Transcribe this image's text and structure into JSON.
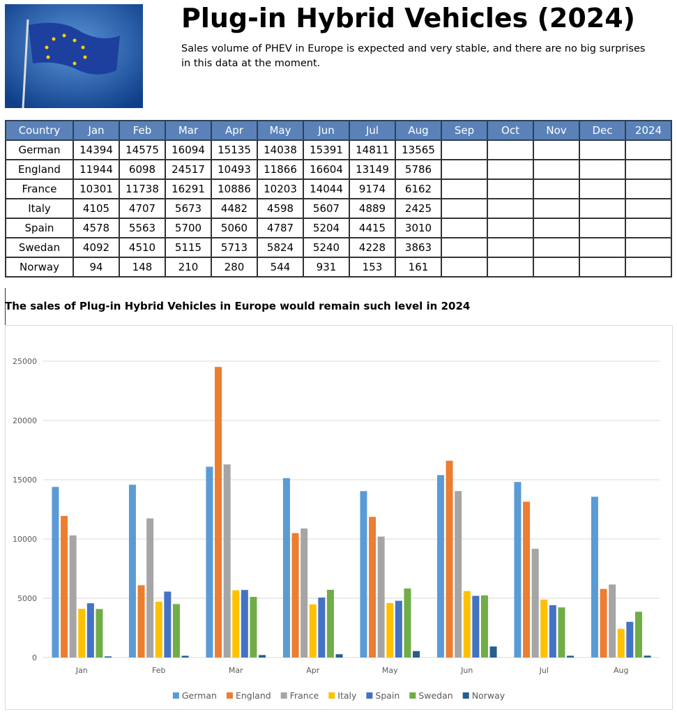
{
  "header": {
    "title": "Plug-in Hybrid Vehicles (2024)",
    "subtitle": "Sales volume of PHEV in Europe is expected and very stable, and there are no big surprises in this data at the moment."
  },
  "table": {
    "columns": [
      "Country",
      "Jan",
      "Feb",
      "Mar",
      "Apr",
      "May",
      "Jun",
      "Jul",
      "Aug",
      "Sep",
      "Oct",
      "Nov",
      "Dec",
      "2024"
    ]
  },
  "chart_heading": "The sales of Plug-in Hybrid Vehicles in Europe would remain such level in 2024",
  "chart_data": {
    "type": "bar",
    "categories": [
      "Jan",
      "Feb",
      "Mar",
      "Apr",
      "May",
      "Jun",
      "Jul",
      "Aug"
    ],
    "series": [
      {
        "name": "German",
        "color": "#5b9bd5",
        "values": [
          14394,
          14575,
          16094,
          15135,
          14038,
          15391,
          14811,
          13565
        ]
      },
      {
        "name": "England",
        "color": "#ed7d31",
        "values": [
          11944,
          6098,
          24517,
          10493,
          11866,
          16604,
          13149,
          5786
        ]
      },
      {
        "name": "France",
        "color": "#a5a5a5",
        "values": [
          10301,
          11738,
          16291,
          10886,
          10203,
          14044,
          9174,
          6162
        ]
      },
      {
        "name": "Italy",
        "color": "#ffc000",
        "values": [
          4105,
          4707,
          5673,
          4482,
          4598,
          5607,
          4889,
          2425
        ]
      },
      {
        "name": "Spain",
        "color": "#4472c4",
        "values": [
          4578,
          5563,
          5700,
          5060,
          4787,
          5204,
          4415,
          3010
        ]
      },
      {
        "name": "Swedan",
        "color": "#70ad47",
        "values": [
          4092,
          4510,
          5115,
          5713,
          5824,
          5240,
          4228,
          3863
        ]
      },
      {
        "name": "Norway",
        "color": "#255e91",
        "values": [
          94,
          148,
          210,
          280,
          544,
          931,
          153,
          161
        ]
      }
    ],
    "ylim": [
      0,
      25000
    ],
    "yticks": [
      0,
      5000,
      10000,
      15000,
      20000,
      25000
    ],
    "grid": true,
    "legend": "bottom"
  }
}
